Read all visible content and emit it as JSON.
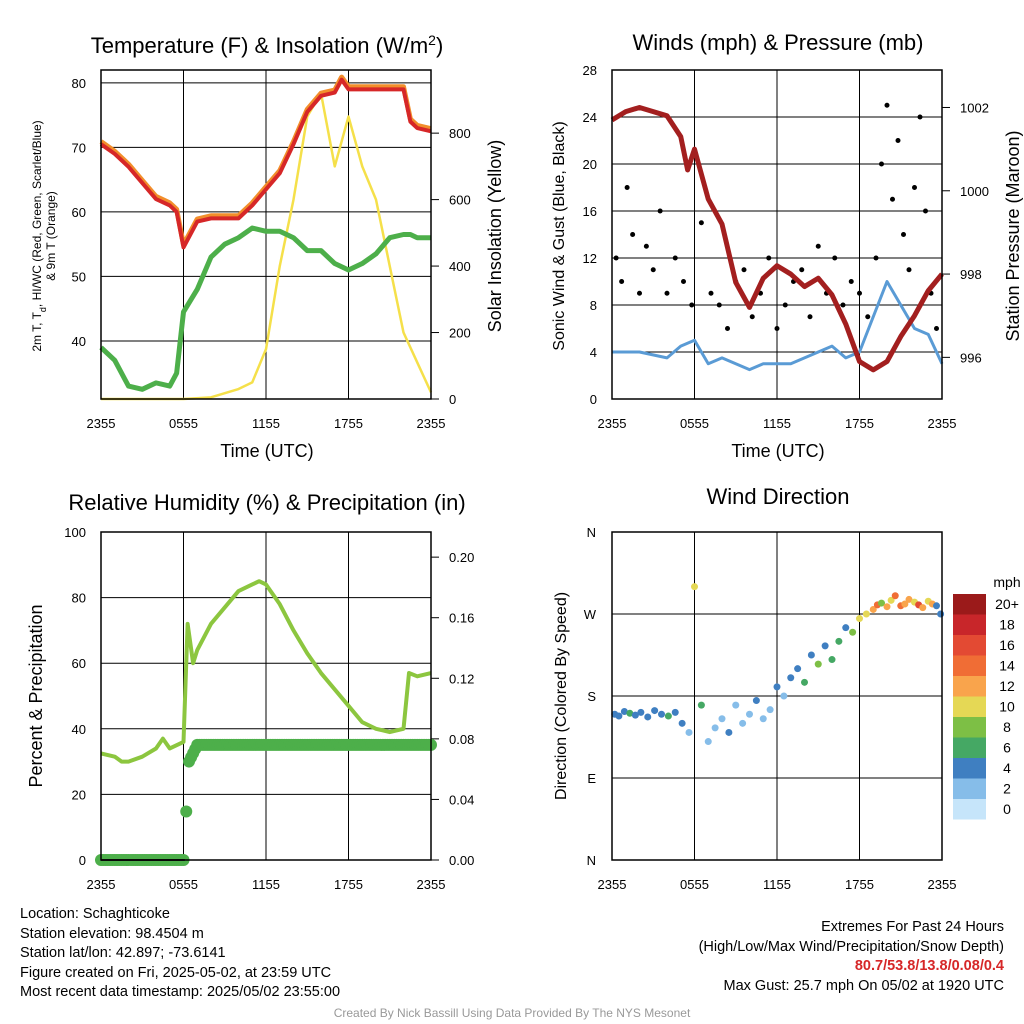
{
  "panels": {
    "temperature": {
      "title": "Temperature (F) & Insolation (W/m",
      "title_sup": "2",
      "title_close": ")",
      "ylabel_lines": [
        "2m T, T",
        "d",
        ", HI/WC (Red, Green, Scarlet/Blue)",
        "& 9m T (Orange)"
      ],
      "y2label": "Solar Insolation (Yellow)",
      "xlabel": "Time (UTC)"
    },
    "winds": {
      "title": "Winds (mph) & Pressure (mb)",
      "ylabel": "Sonic Wind & Gust (Blue, Black)",
      "y2label": "Station Pressure (Maroon)",
      "xlabel": "Time (UTC)"
    },
    "humidity": {
      "title": "Relative Humidity (%) & Precipitation (in)",
      "ylabel": "Percent & Precipitation"
    },
    "direction": {
      "title": "Wind Direction",
      "ylabel": "Direction (Colored By Speed)",
      "legend_title": "mph"
    }
  },
  "chart_data": [
    {
      "type": "line",
      "title": "Temperature (F) & Insolation (W/m2)",
      "xlabel": "Time (UTC)",
      "ylabel": "2m T, Td, HI/WC (Red, Green, Scarlet/Blue) & 9m T (Orange)",
      "y2label": "Solar Insolation (Yellow)",
      "x_ticks": [
        "2355",
        "0555",
        "1155",
        "1755",
        "2355"
      ],
      "y_ticks": [
        40,
        50,
        60,
        70,
        80
      ],
      "y2_ticks": [
        0,
        200,
        400,
        600,
        800
      ],
      "ylim": [
        31,
        82
      ],
      "y2lim": [
        0,
        990
      ],
      "colors": {
        "temp": "#d62728",
        "orange": "#f28e2b",
        "dewpoint": "#4daf4a",
        "solar": "#f5e04a"
      },
      "series": [
        {
          "color": "#d62728",
          "x": [
            0,
            1,
            2,
            3,
            4,
            5,
            5.5,
            6,
            7,
            8,
            9,
            10,
            11,
            12,
            13,
            14,
            15,
            16,
            17,
            17.5,
            18,
            19,
            20,
            21,
            22,
            22.5,
            23,
            24
          ],
          "values": [
            70.5,
            69,
            67,
            64.5,
            62,
            61,
            60,
            54.5,
            58.5,
            59,
            59,
            59,
            61,
            63.5,
            66,
            70.5,
            75.5,
            78,
            78.5,
            80.5,
            79,
            79,
            79,
            79,
            79,
            74,
            73,
            72.5
          ]
        },
        {
          "color": "#4daf4a",
          "x": [
            0,
            1,
            2,
            3,
            4,
            5,
            5.5,
            6,
            7,
            8,
            9,
            10,
            11,
            12,
            13,
            14,
            15,
            16,
            17,
            18,
            19,
            20,
            21,
            22,
            22.5,
            23,
            24
          ],
          "values": [
            39,
            37,
            33,
            32.5,
            33.5,
            33,
            35,
            44.5,
            48,
            53,
            55,
            56,
            57.5,
            57,
            57,
            56,
            54,
            54,
            52,
            51,
            52,
            53.5,
            56,
            56.5,
            56.5,
            56,
            56
          ]
        },
        {
          "color": "#f5e04a",
          "x": [
            0,
            6,
            8,
            10,
            11,
            12,
            13,
            14,
            15,
            16,
            17,
            18,
            19,
            20,
            21,
            22,
            23,
            24
          ],
          "values": [
            0,
            0,
            5,
            30,
            50,
            150,
            400,
            600,
            850,
            920,
            700,
            850,
            700,
            600,
            400,
            200,
            110,
            20
          ]
        }
      ]
    },
    {
      "type": "line",
      "title": "Winds (mph) & Pressure (mb)",
      "xlabel": "Time (UTC)",
      "ylabel": "Sonic Wind & Gust (Blue, Black)",
      "y2label": "Station Pressure (Maroon)",
      "x_ticks": [
        "2355",
        "0555",
        "1155",
        "1755",
        "2355"
      ],
      "y_ticks": [
        0,
        4,
        8,
        12,
        16,
        20,
        24,
        28
      ],
      "y2_ticks": [
        996,
        998,
        1000,
        1002
      ],
      "ylim": [
        0,
        28
      ],
      "y2lim": [
        995.0,
        1002.9
      ],
      "colors": {
        "wind": "#5a9bd5",
        "gust": "#000000",
        "pressure": "#a31f1f"
      },
      "series": [
        {
          "color": "#5a9bd5",
          "x": [
            0,
            2,
            4,
            5,
            6,
            7,
            8,
            9,
            10,
            11,
            12,
            13,
            14,
            15,
            16,
            17,
            18,
            19,
            20,
            21,
            22,
            23,
            24
          ],
          "values": [
            4,
            4,
            3.5,
            4.5,
            5,
            3,
            3.5,
            3,
            2.5,
            3,
            3,
            3,
            3.5,
            4,
            4.5,
            3.5,
            4,
            7,
            10,
            8,
            6,
            5.5,
            3
          ]
        },
        {
          "color": "#a31f1f",
          "x": [
            0,
            1,
            2,
            3,
            4,
            5,
            5.5,
            6,
            7,
            8,
            9,
            10,
            11,
            12,
            13,
            14,
            15,
            16,
            17,
            18,
            19,
            20,
            21,
            22,
            23,
            24
          ],
          "values": [
            1001.7,
            1001.9,
            1002.0,
            1001.9,
            1001.8,
            1001.3,
            1000.5,
            1001.0,
            999.8,
            999.2,
            997.8,
            997.2,
            997.9,
            998.2,
            998.0,
            997.7,
            997.9,
            997.5,
            996.8,
            995.9,
            995.7,
            995.9,
            996.5,
            997.0,
            997.6,
            998.0
          ]
        }
      ],
      "gust_points": {
        "color": "#000000",
        "x": [
          0.3,
          0.7,
          1.1,
          1.5,
          2.0,
          2.5,
          3.0,
          3.5,
          4.0,
          4.6,
          5.2,
          5.8,
          6.5,
          7.2,
          7.8,
          8.4,
          9.0,
          9.6,
          10.2,
          10.8,
          11.4,
          12.0,
          12.6,
          13.2,
          13.8,
          14.4,
          15.0,
          15.6,
          16.2,
          16.8,
          17.4,
          18.0,
          18.6,
          19.2,
          19.6,
          20.0,
          20.4,
          20.8,
          21.2,
          21.6,
          22.0,
          22.4,
          22.8,
          23.2,
          23.6
        ],
        "values": [
          12,
          10,
          18,
          14,
          9,
          13,
          11,
          16,
          9,
          12,
          10,
          8,
          15,
          9,
          8,
          6,
          10,
          11,
          7,
          9,
          12,
          6,
          8,
          10,
          11,
          7,
          13,
          9,
          12,
          8,
          10,
          9,
          7,
          12,
          20,
          25,
          17,
          22,
          14,
          11,
          18,
          24,
          16,
          9,
          6
        ]
      }
    },
    {
      "type": "line",
      "title": "Relative Humidity (%) & Precipitation (in)",
      "ylabel": "Percent & Precipitation",
      "x_ticks": [
        "2355",
        "0555",
        "1155",
        "1755",
        "2355"
      ],
      "y_ticks": [
        0,
        20,
        40,
        60,
        80,
        100
      ],
      "y2_ticks": [
        "0.00",
        "0.04",
        "0.08",
        "0.12",
        "0.16",
        "0.20"
      ],
      "ylim": [
        0,
        100
      ],
      "y2lim": [
        0,
        0.2166
      ],
      "colors": {
        "rh": "#8cc63f",
        "precip": "#4daf4a",
        "snow": "#222222"
      },
      "series": [
        {
          "color": "#8cc63f",
          "x": [
            0,
            1,
            1.5,
            2,
            3,
            4,
            4.5,
            5,
            5.5,
            6,
            6.3,
            6.7,
            7,
            8,
            9,
            10,
            11,
            11.5,
            12,
            13,
            14,
            15,
            16,
            17,
            18,
            19,
            20,
            21,
            22,
            22.4,
            23,
            24
          ],
          "values": [
            32.5,
            31.5,
            30,
            30,
            31.5,
            34,
            37,
            34,
            35,
            36,
            72,
            60,
            64,
            72,
            77,
            82,
            84,
            85,
            84,
            78,
            70,
            63,
            57,
            52,
            47,
            42,
            40,
            39,
            40,
            57,
            56,
            57
          ]
        },
        {
          "color": "#4daf4a",
          "x": [
            0,
            2,
            4,
            6,
            6.2,
            6.4,
            7,
            9,
            12,
            15,
            18,
            21,
            24
          ],
          "values": [
            0,
            0,
            0,
            0,
            0.032,
            0.065,
            0.076,
            0.076,
            0.076,
            0.076,
            0.076,
            0.076,
            0.076
          ]
        }
      ]
    },
    {
      "type": "scatter",
      "title": "Wind Direction",
      "ylabel": "Direction (Colored By Speed)",
      "x_ticks": [
        "2355",
        "0555",
        "1155",
        "1755",
        "2355"
      ],
      "y_ticks": [
        "N",
        "E",
        "S",
        "W",
        "N"
      ],
      "ylim": [
        0,
        360
      ],
      "legend": {
        "title": "mph",
        "labels": [
          "20+",
          "18",
          "16",
          "14",
          "12",
          "10",
          "8",
          "6",
          "4",
          "2",
          "0"
        ],
        "colors": [
          "#9b1a1a",
          "#c8262a",
          "#e34a33",
          "#f06d35",
          "#f9a44c",
          "#e5d855",
          "#7dbf45",
          "#45a864",
          "#3f7fc1",
          "#86bde9",
          "#c6e5fa"
        ]
      },
      "points": {
        "x": [
          0.2,
          0.5,
          0.9,
          1.3,
          1.7,
          2.1,
          2.6,
          3.1,
          3.6,
          4.1,
          4.6,
          5.1,
          5.6,
          6.0,
          6.5,
          7.0,
          7.5,
          8.0,
          8.5,
          9.0,
          9.5,
          10.0,
          10.5,
          11.0,
          11.5,
          12.0,
          12.5,
          13.0,
          13.5,
          14.0,
          14.5,
          15.0,
          15.5,
          16.0,
          16.5,
          17.0,
          17.5,
          18.0,
          18.5,
          19.0,
          19.3,
          19.6,
          20.0,
          20.3,
          20.6,
          21.0,
          21.3,
          21.6,
          22.0,
          22.3,
          22.6,
          23.0,
          23.3,
          23.6,
          23.9
        ],
        "values": [
          160,
          158,
          163,
          161,
          159,
          162,
          157,
          164,
          160,
          158,
          162,
          150,
          140,
          300,
          170,
          130,
          145,
          155,
          140,
          170,
          150,
          160,
          175,
          155,
          165,
          190,
          180,
          200,
          210,
          195,
          225,
          215,
          235,
          220,
          240,
          255,
          250,
          265,
          270,
          275,
          280,
          282,
          278,
          285,
          290,
          279,
          281,
          286,
          283,
          280,
          277,
          284,
          281,
          279,
          270
        ],
        "speeds": [
          3,
          4,
          3,
          5,
          3,
          4,
          3,
          3,
          4,
          5,
          4,
          3,
          2,
          9,
          6,
          2,
          1,
          2,
          3,
          2,
          1,
          2,
          3,
          2,
          1,
          3,
          2,
          4,
          3,
          5,
          4,
          7,
          4,
          6,
          5,
          4,
          7,
          9,
          10,
          12,
          14,
          8,
          12,
          10,
          14,
          13,
          12,
          11,
          10,
          16,
          12,
          9,
          11,
          4,
          3
        ]
      }
    }
  ],
  "info": {
    "location": "Location: Schaghticoke",
    "elevation": "Station elevation: 98.4504 m",
    "latlon": "Station lat/lon: 42.897; -73.6141",
    "created": "Figure created on Fri, 2025-05-02, at 23:59 UTC",
    "recent": "Most recent data timestamp: 2025/05/02 23:55:00",
    "extremes_title": "Extremes For Past 24 Hours",
    "extremes_desc": "(High/Low/Max Wind/Precipitation/Snow Depth)",
    "extremes_values": "80.7/53.8/13.8/0.08/0.4",
    "max_gust": "Max Gust: 25.7 mph On 05/02 at 1920 UTC"
  },
  "credit": "Created By Nick Bassill Using Data Provided By The NYS Mesonet"
}
